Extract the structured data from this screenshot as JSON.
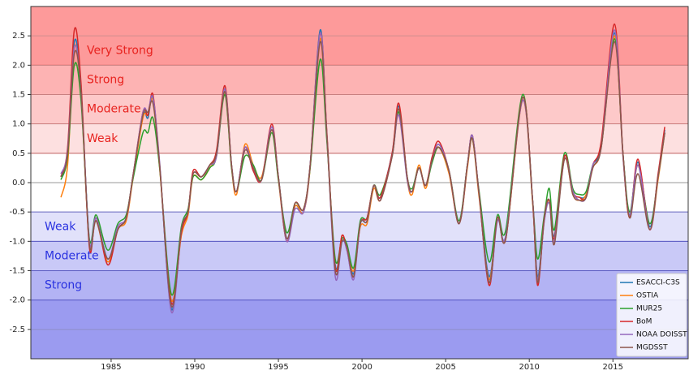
{
  "chart_data": {
    "type": "line",
    "xlim": [
      1980.2,
      2019.5
    ],
    "ylim": [
      -3,
      3
    ],
    "xticks": [
      1985,
      1990,
      1995,
      2000,
      2005,
      2010,
      2015
    ],
    "yticks": [
      {
        "value": -2.5,
        "label": "-2.5"
      },
      {
        "value": -2,
        "label": "-2.0"
      },
      -1.5,
      {
        "value": -1,
        "label": "-1.0"
      },
      -0.5,
      {
        "value": 0,
        "label": "0.0"
      },
      0.5,
      {
        "value": 1,
        "label": "1.0"
      },
      1.5,
      {
        "value": 2,
        "label": "2.0"
      },
      2.5
    ],
    "grid": true,
    "legend": "lower right",
    "bands": [
      {
        "label": "Very Strong",
        "from": 2,
        "to": 3,
        "color": "#fd9a9a",
        "text_color": "#e8231f",
        "edge": "#e84040"
      },
      {
        "label": "Strong",
        "from": 1.5,
        "to": 2,
        "color": "#fdb3b3",
        "text_color": "#e8231f",
        "edge": "#e84040"
      },
      {
        "label": "Moderate",
        "from": 1,
        "to": 1.5,
        "color": "#fdc9c9",
        "text_color": "#e8231f",
        "edge": "#e84040"
      },
      {
        "label": "Weak",
        "from": 0.5,
        "to": 1,
        "color": "#fde0e0",
        "text_color": "#e8231f",
        "edge": "#e86060"
      },
      {
        "label": "Weak",
        "from": -1,
        "to": -0.5,
        "color": "#e1e1fa",
        "text_color": "#2a32e0",
        "edge": "#6a6ae8"
      },
      {
        "label": "Moderate",
        "from": -1.5,
        "to": -1,
        "color": "#c9c9f7",
        "text_color": "#2a32e0",
        "edge": "#4a4ae8"
      },
      {
        "label": "Strong",
        "from": -2,
        "to": -1.5,
        "color": "#b3b3f4",
        "text_color": "#2a32e0",
        "edge": "#4a4ae8"
      },
      {
        "label": "",
        "from": -3,
        "to": -2,
        "color": "#9b9bf0",
        "text_color": "#2a32e0",
        "edge": "#4a4ae8"
      }
    ],
    "x": [
      1982.0,
      1982.4,
      1982.8,
      1983.2,
      1983.7,
      1984.1,
      1984.8,
      1985.4,
      1985.9,
      1986.3,
      1986.9,
      1987.2,
      1987.5,
      1987.9,
      1988.6,
      1989.2,
      1989.6,
      1989.9,
      1990.4,
      1990.9,
      1991.3,
      1991.8,
      1992.2,
      1992.5,
      1993.0,
      1993.5,
      1994.0,
      1994.6,
      1995.0,
      1995.5,
      1996.0,
      1996.5,
      1996.9,
      1997.5,
      1997.9,
      1998.4,
      1998.8,
      1999.1,
      1999.5,
      1999.9,
      2000.3,
      2000.7,
      2001.1,
      2001.8,
      2002.2,
      2002.7,
      2003.0,
      2003.4,
      2003.8,
      2004.2,
      2004.6,
      2005.2,
      2005.8,
      2006.3,
      2006.6,
      2007.0,
      2007.6,
      2008.1,
      2008.6,
      2009.6,
      2010.2,
      2010.5,
      2010.9,
      2011.2,
      2011.5,
      2012.1,
      2012.6,
      2013.0,
      2013.4,
      2013.8,
      2014.3,
      2015.1,
      2015.6,
      2016.0,
      2016.5,
      2017.2,
      2017.7,
      2018.1
    ],
    "series": [
      {
        "name": "ESACCI-C3S",
        "color": "#1f77b4",
        "values": [
          0.1,
          0.5,
          2.4,
          1.6,
          -1.0,
          -0.6,
          -1.3,
          -0.8,
          -0.6,
          0.1,
          1.15,
          1.1,
          1.45,
          0.3,
          -2.15,
          -0.8,
          -0.5,
          0.15,
          0.1,
          0.3,
          0.5,
          1.6,
          0.3,
          -0.15,
          0.6,
          0.2,
          0.05,
          0.95,
          0.1,
          -0.95,
          -0.4,
          -0.5,
          0.3,
          2.6,
          0.8,
          -1.4,
          -0.95,
          -1.1,
          -1.55,
          -0.7,
          -0.65,
          -0.05,
          -0.25,
          0.5,
          1.3,
          0.1,
          -0.15,
          0.25,
          -0.05,
          0.4,
          0.65,
          0.2,
          -0.7,
          0.3,
          0.8,
          -0.2,
          -1.6,
          -0.6,
          -0.9,
          1.45,
          -0.3,
          -1.6,
          -0.6,
          -0.3,
          -0.9,
          0.45,
          -0.15,
          -0.25,
          -0.2,
          0.3,
          0.65,
          2.55,
          0.5,
          -0.55,
          0.35,
          -0.75,
          0.1,
          0.9
        ]
      },
      {
        "name": "OSTIA",
        "color": "#ff7f0e",
        "values": [
          -0.25,
          0.3,
          2.3,
          1.5,
          -1.05,
          -0.65,
          -1.35,
          -0.8,
          -0.65,
          0.05,
          1.1,
          1.15,
          1.4,
          0.25,
          -2.0,
          -0.9,
          -0.55,
          0.1,
          0.05,
          0.25,
          0.5,
          1.55,
          0.25,
          -0.2,
          0.65,
          0.3,
          0.1,
          0.9,
          0.05,
          -1.0,
          -0.4,
          -0.5,
          0.25,
          2.45,
          0.75,
          -1.45,
          -0.9,
          -1.15,
          -1.5,
          -0.75,
          -0.7,
          -0.1,
          -0.3,
          0.45,
          1.25,
          0.05,
          -0.2,
          0.3,
          -0.1,
          0.4,
          0.6,
          0.15,
          -0.7,
          0.25,
          0.75,
          -0.25,
          -1.65,
          -0.6,
          -0.95,
          1.4,
          -0.35,
          -1.65,
          -0.65,
          -0.3,
          -0.95,
          0.4,
          -0.2,
          -0.3,
          -0.2,
          0.25,
          0.6,
          2.5,
          0.45,
          -0.6,
          0.3,
          -0.8,
          0.05,
          0.85
        ]
      },
      {
        "name": "MUR25",
        "color": "#2ca02c",
        "values": [
          0.05,
          0.45,
          2.0,
          1.4,
          -0.95,
          -0.55,
          -1.15,
          -0.7,
          -0.55,
          0.05,
          0.85,
          0.85,
          1.1,
          0.25,
          -1.9,
          -0.75,
          -0.45,
          0.1,
          0.05,
          0.25,
          0.45,
          1.5,
          0.25,
          -0.15,
          0.45,
          0.3,
          0.05,
          0.85,
          0.05,
          -0.85,
          -0.35,
          -0.45,
          0.25,
          2.1,
          0.7,
          -1.3,
          -0.95,
          -1.05,
          -1.45,
          -0.65,
          -0.6,
          -0.05,
          -0.2,
          0.45,
          1.2,
          0.1,
          -0.1,
          0.25,
          -0.05,
          0.35,
          0.6,
          0.2,
          -0.65,
          0.3,
          0.75,
          -0.15,
          -1.35,
          -0.55,
          -0.8,
          1.5,
          -0.3,
          -1.3,
          -0.55,
          -0.1,
          -0.8,
          0.5,
          -0.1,
          -0.2,
          -0.15,
          0.3,
          0.6,
          2.45,
          0.5,
          -0.5,
          0.3,
          -0.7,
          0.1,
          0.85
        ]
      },
      {
        "name": "BoM",
        "color": "#d62728",
        "values": [
          0.1,
          0.6,
          2.6,
          1.7,
          -1.1,
          -0.6,
          -1.4,
          -0.8,
          -0.6,
          0.1,
          1.2,
          1.15,
          1.5,
          0.3,
          -2.05,
          -0.85,
          -0.5,
          0.2,
          0.1,
          0.3,
          0.55,
          1.65,
          0.3,
          -0.15,
          0.6,
          0.2,
          0.05,
          1.0,
          0.1,
          -1.0,
          -0.35,
          -0.45,
          0.3,
          2.55,
          0.85,
          -1.45,
          -0.9,
          -1.15,
          -1.6,
          -0.7,
          -0.6,
          -0.05,
          -0.25,
          0.5,
          1.35,
          0.1,
          -0.15,
          0.25,
          -0.05,
          0.45,
          0.7,
          0.2,
          -0.7,
          0.3,
          0.8,
          -0.2,
          -1.75,
          -0.6,
          -0.95,
          1.45,
          -0.3,
          -1.75,
          -0.6,
          -0.3,
          -0.95,
          0.45,
          -0.15,
          -0.25,
          -0.25,
          0.3,
          0.7,
          2.7,
          0.5,
          -0.6,
          0.4,
          -0.8,
          0.15,
          0.95
        ]
      },
      {
        "name": "NOAA DOISST",
        "color": "#9467bd",
        "values": [
          0.15,
          0.55,
          2.3,
          1.55,
          -1.0,
          -0.6,
          -1.3,
          -0.75,
          -0.6,
          0.1,
          1.2,
          1.2,
          1.45,
          0.35,
          -2.2,
          -0.8,
          -0.5,
          0.15,
          0.1,
          0.3,
          0.45,
          1.6,
          0.3,
          -0.15,
          0.6,
          0.25,
          0.05,
          0.95,
          0.1,
          -1.0,
          -0.45,
          -0.5,
          0.3,
          2.55,
          0.8,
          -1.6,
          -1.0,
          -1.15,
          -1.65,
          -0.7,
          -0.65,
          -0.05,
          -0.3,
          0.45,
          1.15,
          0.05,
          -0.15,
          0.25,
          -0.05,
          0.4,
          0.65,
          0.2,
          -0.7,
          0.3,
          0.8,
          -0.2,
          -1.7,
          -0.65,
          -0.9,
          1.4,
          -0.3,
          -1.65,
          -0.65,
          -0.35,
          -1.0,
          0.4,
          -0.15,
          -0.3,
          -0.25,
          0.3,
          0.6,
          2.6,
          0.45,
          -0.55,
          0.3,
          -0.8,
          0.1,
          0.85
        ]
      },
      {
        "name": "MGDSST",
        "color": "#8c564b",
        "values": [
          0.1,
          0.5,
          2.2,
          1.55,
          -1.05,
          -0.65,
          -1.3,
          -0.8,
          -0.6,
          0.1,
          1.15,
          1.2,
          1.35,
          0.3,
          -2.1,
          -0.8,
          -0.5,
          0.15,
          0.1,
          0.3,
          0.5,
          1.55,
          0.3,
          -0.15,
          0.55,
          0.25,
          0.05,
          0.9,
          0.1,
          -0.95,
          -0.35,
          -0.45,
          0.3,
          2.4,
          0.8,
          -1.5,
          -1.0,
          -1.1,
          -1.6,
          -0.7,
          -0.65,
          -0.05,
          -0.3,
          0.45,
          1.25,
          0.1,
          -0.15,
          0.25,
          -0.05,
          0.4,
          0.6,
          0.2,
          -0.7,
          0.3,
          0.75,
          -0.2,
          -1.7,
          -0.6,
          -0.95,
          1.45,
          -0.3,
          -1.7,
          -0.6,
          -0.3,
          -1.05,
          0.4,
          -0.2,
          -0.3,
          -0.25,
          0.25,
          0.6,
          2.4,
          0.5,
          -0.6,
          0.15,
          -0.8,
          0.1,
          0.85
        ]
      }
    ]
  }
}
